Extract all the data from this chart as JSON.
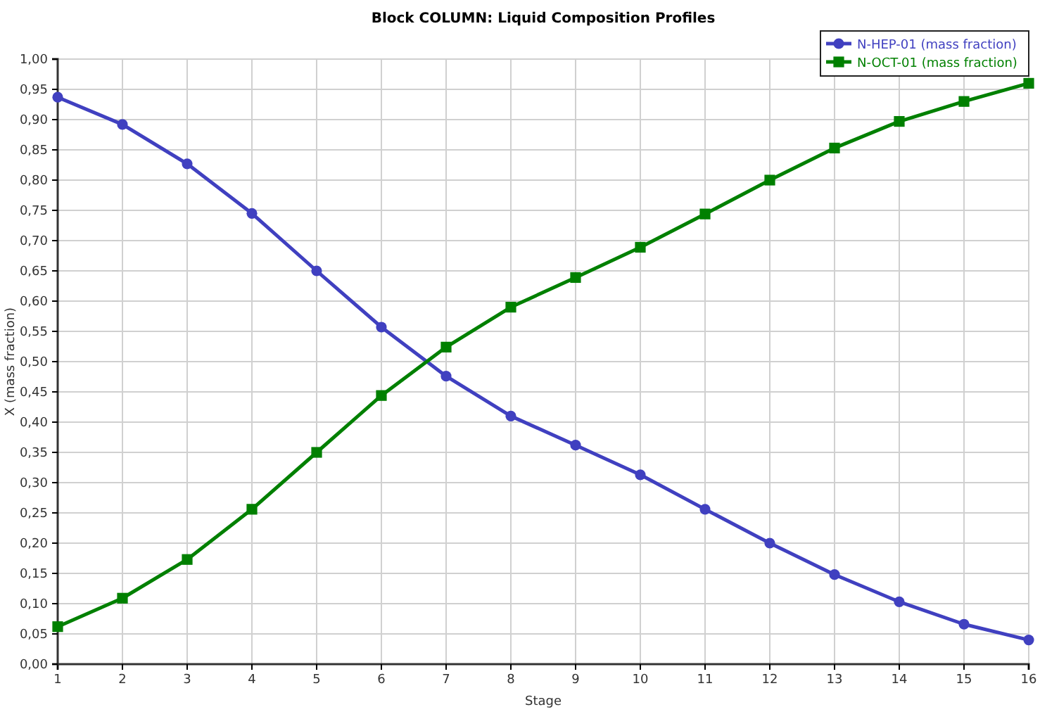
{
  "chart_data": {
    "type": "line",
    "title": "Block COLUMN: Liquid Composition Profiles",
    "xlabel": "Stage",
    "ylabel": "X (mass fraction)",
    "x": [
      1,
      2,
      3,
      4,
      5,
      6,
      7,
      8,
      9,
      10,
      11,
      12,
      13,
      14,
      15,
      16
    ],
    "series": [
      {
        "name": "N-HEP-01 (mass fraction)",
        "color": "#4040c0",
        "marker": "circle",
        "values": [
          0.937,
          0.892,
          0.827,
          0.745,
          0.65,
          0.557,
          0.476,
          0.41,
          0.362,
          0.313,
          0.256,
          0.2,
          0.148,
          0.103,
          0.066,
          0.04
        ]
      },
      {
        "name": "N-OCT-01 (mass fraction)",
        "color": "#008000",
        "marker": "square",
        "values": [
          0.062,
          0.109,
          0.173,
          0.256,
          0.35,
          0.444,
          0.524,
          0.59,
          0.639,
          0.689,
          0.744,
          0.8,
          0.853,
          0.897,
          0.93,
          0.96
        ]
      }
    ],
    "xlim": [
      1,
      16
    ],
    "xticks": [
      1,
      2,
      3,
      4,
      5,
      6,
      7,
      8,
      9,
      10,
      11,
      12,
      13,
      14,
      15,
      16
    ],
    "ylim": [
      0,
      1
    ],
    "yticks": [
      {
        "value": 0,
        "label": "0,00"
      },
      {
        "value": 0.05,
        "label": "0,05"
      },
      {
        "value": 0.1,
        "label": "0,10"
      },
      {
        "value": 0.15,
        "label": "0,15"
      },
      {
        "value": 0.2,
        "label": "0,20"
      },
      {
        "value": 0.25,
        "label": "0,25"
      },
      {
        "value": 0.3,
        "label": "0,30"
      },
      {
        "value": 0.35,
        "label": "0,35"
      },
      {
        "value": 0.4,
        "label": "0,40"
      },
      {
        "value": 0.45,
        "label": "0,45"
      },
      {
        "value": 0.5,
        "label": "0,50"
      },
      {
        "value": 0.55,
        "label": "0,55"
      },
      {
        "value": 0.6,
        "label": "0,60"
      },
      {
        "value": 0.65,
        "label": "0,65"
      },
      {
        "value": 0.7,
        "label": "0,70"
      },
      {
        "value": 0.75,
        "label": "0,75"
      },
      {
        "value": 0.8,
        "label": "0,80"
      },
      {
        "value": 0.85,
        "label": "0,85"
      },
      {
        "value": 0.9,
        "label": "0,90"
      },
      {
        "value": 0.95,
        "label": "0,95"
      },
      {
        "value": 1,
        "label": "1,00"
      }
    ],
    "grid": true,
    "legend": "top right",
    "line_style": "solid"
  }
}
